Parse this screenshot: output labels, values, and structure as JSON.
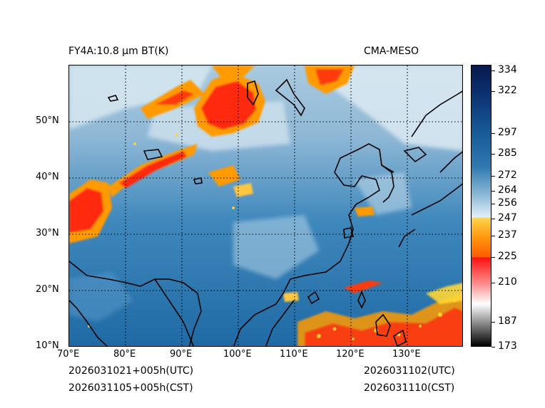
{
  "header": {
    "title_left": "FY4A:10.8 µm BT(K)",
    "title_right": "CMA-MESO"
  },
  "footer": {
    "init_utc": "2026031021+005h(UTC)",
    "init_cst": "2026031105+005h(CST)",
    "valid_utc": "2026031102(UTC)",
    "valid_cst": "2026031110(CST)"
  },
  "axes": {
    "lon_labels": [
      "70°E",
      "80°E",
      "90°E",
      "100°E",
      "110°E",
      "120°E",
      "130°E"
    ],
    "lat_labels": [
      "10°N",
      "20°N",
      "30°N",
      "40°N",
      "50°N"
    ],
    "lon_range": [
      70,
      140
    ],
    "lat_range": [
      10,
      60
    ]
  },
  "colorbar": {
    "ticks": [
      "334",
      "322",
      "297",
      "285",
      "272",
      "264",
      "256",
      "247",
      "237",
      "225",
      "210",
      "187",
      "173"
    ],
    "tick_values": [
      334,
      322,
      297,
      285,
      272,
      264,
      256,
      247,
      237,
      225,
      210,
      187,
      173
    ],
    "range": [
      173,
      338
    ]
  },
  "colors": {
    "ocean_blue": "#1f6aa5",
    "cold_red": "#ff1a10",
    "warm_orange": "#ff9a00",
    "yellow": "#ffd633",
    "light_cloud": "#dceaf2"
  }
}
